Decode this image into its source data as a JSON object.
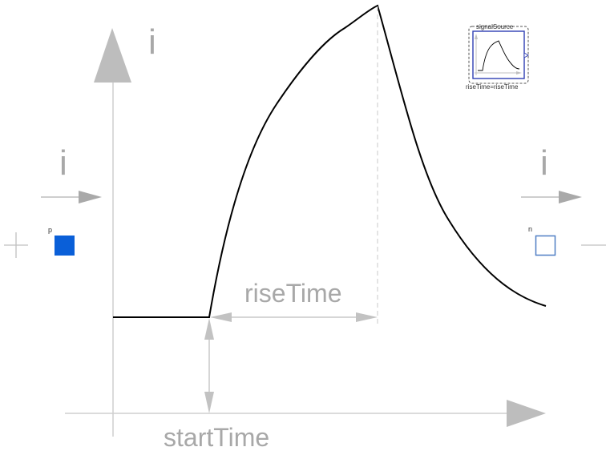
{
  "labels": {
    "current_y_axis": "i",
    "current_left": "i",
    "current_right": "i",
    "rise_time": "riseTime",
    "start_time": "startTime",
    "plus_sign": "+",
    "minus_sign": "—"
  },
  "pins": {
    "positive": {
      "label": "p",
      "color": "#0a5fd8"
    },
    "negative": {
      "label": "n",
      "color": "#4f7ec4"
    }
  },
  "signal_source": {
    "title": "signalSource",
    "parameter": "riseTime=riseTime"
  },
  "colors": {
    "axis": "#c8c8c8",
    "arrow": "#b4b4b4",
    "text": "#a8a8a8",
    "curve": "#000000",
    "source_border": "#2f3fb3"
  }
}
